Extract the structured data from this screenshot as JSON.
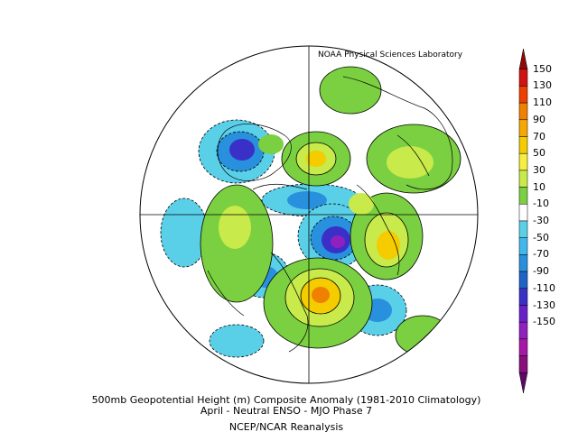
{
  "header": {
    "source": "NOAA Physical Sciences Laboratory"
  },
  "caption": {
    "line1": "500mb Geopotential Height (m) Composite Anomaly (1981-2010 Climatology)",
    "line2": "April - Neutral ENSO - MJO Phase 7",
    "line3": "NCEP/NCAR Reanalysis"
  },
  "colorbar": {
    "labels": [
      "150",
      "130",
      "110",
      "90",
      "70",
      "50",
      "30",
      "10",
      "-10",
      "-30",
      "-50",
      "-70",
      "-90",
      "-110",
      "-130",
      "-150"
    ],
    "colors": [
      "#8c0a0a",
      "#d01414",
      "#ee4000",
      "#f08000",
      "#f6a800",
      "#f4cc00",
      "#f6ee40",
      "#c8ea4a",
      "#7ad040",
      "#ffffff",
      "#5ad0e8",
      "#40b8ee",
      "#2890dc",
      "#1e64c8",
      "#3a30c8",
      "#6a20c8",
      "#9020c0",
      "#a818a8",
      "#88107c",
      "#60086a"
    ]
  },
  "map": {
    "projection": "north-polar-stereographic",
    "anomaly_colors": {
      "pos_light": "#7ad040",
      "pos_mid": "#c8ea4a",
      "pos_high": "#f4cc00",
      "pos_peak": "#f08000",
      "neg_light": "#5ad0e8",
      "neg_mid": "#2890dc",
      "neg_high": "#3a30c8",
      "neg_peak": "#9020c0"
    }
  }
}
